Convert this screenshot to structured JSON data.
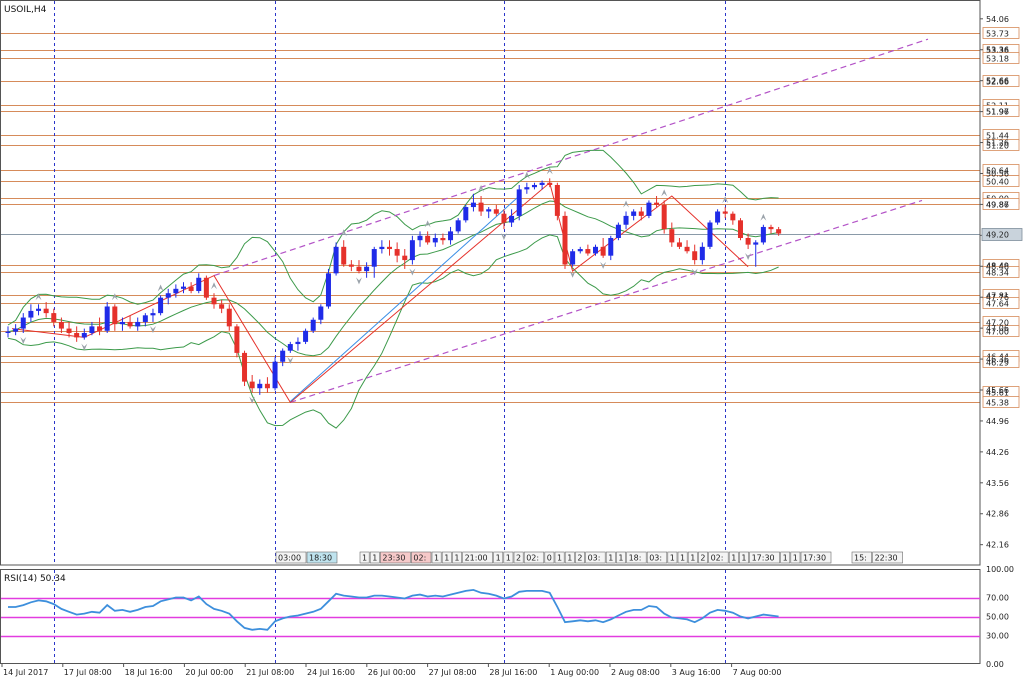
{
  "window": {
    "title": "USOIL,H4"
  },
  "chart_data": [
    {
      "type": "candlestick",
      "symbol": "USOIL",
      "timeframe": "H4",
      "ylim": [
        41.7,
        54.35
      ],
      "y_ticks": [
        "54.06",
        "53.36",
        "52.66",
        "51.96",
        "51.26",
        "50.56",
        "49.86",
        "49.16",
        "48.46",
        "47.76",
        "47.06",
        "46.36",
        "45.66",
        "44.96",
        "44.26",
        "43.56",
        "42.86",
        "42.16"
      ],
      "x_ticks": [
        "14 Jul 2017",
        "17 Jul 08:00",
        "18 Jul 16:00",
        "20 Jul 00:00",
        "21 Jul 08:00",
        "24 Jul 16:00",
        "26 Jul 00:00",
        "27 Jul 08:00",
        "28 Jul 16:00",
        "1 Aug 00:00",
        "2 Aug 08:00",
        "3 Aug 16:00",
        "7 Aug 00:00"
      ],
      "current_price": "49.20",
      "level_lines": [
        "53.73",
        "53.36",
        "53.18",
        "52.66",
        "52.11",
        "51.97",
        "51.44",
        "51.20",
        "50.64",
        "50.40",
        "50.00",
        "49.87",
        "48.49",
        "48.34",
        "47.81",
        "47.64",
        "47.20",
        "47.00",
        "46.44",
        "46.29",
        "45.61",
        "45.38"
      ],
      "colors": {
        "bull": "#1f2be8",
        "bear": "#e5312b",
        "level": "#d68b5a",
        "channel": "#b353c7",
        "band": "#3c9a4a",
        "trend": "#3a8ee6",
        "current": "#8a9aa8",
        "period": "#2a35c9"
      },
      "time_labels": [
        "03:00",
        "18:30",
        "1",
        "1",
        "23:30",
        "02:",
        "1",
        "1",
        "1",
        "21:00",
        "1",
        "1",
        "2",
        "02:",
        "0",
        "1",
        "1",
        "2",
        "03:",
        "1",
        "1",
        "18:",
        "03:",
        "1",
        "1",
        "1",
        "2",
        "02:",
        "1",
        "1",
        "17:30",
        "1",
        "1",
        "17:30",
        "15:",
        "22:30"
      ],
      "ohlc": [
        [
          46.95,
          47.1,
          46.85,
          46.98
        ],
        [
          46.98,
          47.15,
          46.9,
          47.05
        ],
        [
          47.05,
          47.4,
          46.95,
          47.3
        ],
        [
          47.3,
          47.6,
          47.2,
          47.45
        ],
        [
          47.45,
          47.6,
          47.35,
          47.5
        ],
        [
          47.5,
          47.65,
          47.3,
          47.4
        ],
        [
          47.4,
          47.5,
          47.1,
          47.2
        ],
        [
          47.2,
          47.3,
          46.95,
          47.05
        ],
        [
          47.05,
          47.2,
          46.85,
          46.95
        ],
        [
          46.95,
          47.1,
          46.75,
          46.85
        ],
        [
          46.85,
          47.05,
          46.8,
          46.95
        ],
        [
          46.95,
          47.2,
          46.9,
          47.1
        ],
        [
          47.1,
          47.3,
          46.9,
          47.0
        ],
        [
          47.0,
          47.65,
          46.95,
          47.55
        ],
        [
          47.55,
          47.6,
          47.0,
          47.15
        ],
        [
          47.15,
          47.3,
          47.0,
          47.2
        ],
        [
          47.2,
          47.35,
          47.05,
          47.1
        ],
        [
          47.1,
          47.3,
          47.0,
          47.2
        ],
        [
          47.2,
          47.4,
          47.1,
          47.35
        ],
        [
          47.35,
          47.5,
          47.2,
          47.4
        ],
        [
          47.4,
          47.8,
          47.35,
          47.75
        ],
        [
          47.75,
          47.95,
          47.6,
          47.85
        ],
        [
          47.85,
          48.05,
          47.75,
          47.95
        ],
        [
          47.95,
          48.1,
          47.85,
          48.0
        ],
        [
          48.0,
          48.1,
          47.85,
          47.9
        ],
        [
          47.9,
          48.3,
          47.85,
          48.2
        ],
        [
          48.2,
          48.25,
          47.7,
          47.75
        ],
        [
          47.75,
          47.85,
          47.5,
          47.6
        ],
        [
          47.6,
          47.7,
          47.4,
          47.5
        ],
        [
          47.5,
          47.6,
          47.0,
          47.1
        ],
        [
          47.1,
          47.15,
          46.4,
          46.5
        ],
        [
          46.5,
          46.55,
          45.75,
          45.85
        ],
        [
          45.85,
          46.0,
          45.6,
          45.7
        ],
        [
          45.7,
          45.9,
          45.55,
          45.8
        ],
        [
          45.8,
          45.95,
          45.6,
          45.7
        ],
        [
          45.7,
          46.4,
          45.65,
          46.3
        ],
        [
          46.3,
          46.6,
          46.2,
          46.55
        ],
        [
          46.55,
          46.75,
          46.5,
          46.7
        ],
        [
          46.7,
          46.85,
          46.55,
          46.75
        ],
        [
          46.75,
          47.05,
          46.7,
          47.0
        ],
        [
          47.0,
          47.3,
          46.95,
          47.25
        ],
        [
          47.25,
          47.6,
          47.15,
          47.55
        ],
        [
          47.55,
          48.4,
          47.5,
          48.3
        ],
        [
          48.3,
          49.0,
          48.25,
          48.9
        ],
        [
          48.9,
          49.05,
          48.45,
          48.5
        ],
        [
          48.5,
          48.6,
          48.35,
          48.45
        ],
        [
          48.45,
          48.6,
          48.3,
          48.35
        ],
        [
          48.35,
          48.55,
          48.2,
          48.45
        ],
        [
          48.45,
          48.9,
          48.2,
          48.85
        ],
        [
          48.85,
          49.05,
          48.75,
          48.9
        ],
        [
          48.9,
          49.05,
          48.7,
          48.85
        ],
        [
          48.85,
          49.0,
          48.55,
          48.7
        ],
        [
          48.7,
          48.85,
          48.4,
          48.6
        ],
        [
          48.6,
          49.15,
          48.5,
          49.05
        ],
        [
          49.05,
          49.25,
          48.9,
          49.15
        ],
        [
          49.15,
          49.25,
          48.95,
          49.0
        ],
        [
          49.0,
          49.2,
          48.9,
          49.1
        ],
        [
          49.1,
          49.2,
          48.95,
          49.05
        ],
        [
          49.05,
          49.35,
          48.95,
          49.25
        ],
        [
          49.25,
          49.55,
          49.2,
          49.5
        ],
        [
          49.5,
          49.85,
          49.45,
          49.8
        ],
        [
          49.8,
          50.1,
          49.7,
          49.9
        ],
        [
          49.9,
          50.05,
          49.6,
          49.7
        ],
        [
          49.7,
          49.8,
          49.55,
          49.75
        ],
        [
          49.75,
          49.85,
          49.6,
          49.65
        ],
        [
          49.65,
          49.75,
          49.3,
          49.45
        ],
        [
          49.45,
          49.75,
          49.35,
          49.6
        ],
        [
          49.6,
          50.3,
          49.5,
          50.2
        ],
        [
          50.2,
          50.35,
          50.1,
          50.25
        ],
        [
          50.25,
          50.35,
          50.2,
          50.3
        ],
        [
          50.3,
          50.4,
          50.2,
          50.35
        ],
        [
          50.35,
          50.45,
          50.25,
          50.3
        ],
        [
          50.3,
          50.35,
          49.5,
          49.6
        ],
        [
          49.6,
          49.7,
          48.4,
          48.5
        ],
        [
          48.5,
          48.85,
          48.45,
          48.8
        ],
        [
          48.8,
          48.9,
          48.75,
          48.85
        ],
        [
          48.85,
          48.95,
          48.7,
          48.75
        ],
        [
          48.75,
          48.95,
          48.7,
          48.9
        ],
        [
          48.9,
          49.1,
          48.65,
          48.7
        ],
        [
          48.7,
          49.15,
          48.6,
          49.1
        ],
        [
          49.1,
          49.45,
          49.05,
          49.4
        ],
        [
          49.4,
          49.7,
          49.3,
          49.6
        ],
        [
          49.6,
          49.75,
          49.5,
          49.7
        ],
        [
          49.7,
          49.8,
          49.5,
          49.6
        ],
        [
          49.6,
          49.95,
          49.55,
          49.9
        ],
        [
          49.9,
          50.05,
          49.8,
          49.85
        ],
        [
          49.85,
          49.95,
          49.2,
          49.3
        ],
        [
          49.3,
          49.45,
          48.9,
          49.0
        ],
        [
          49.0,
          49.1,
          48.85,
          48.9
        ],
        [
          48.9,
          49.05,
          48.75,
          48.8
        ],
        [
          48.8,
          48.95,
          48.5,
          48.6
        ],
        [
          48.6,
          49.0,
          48.5,
          48.9
        ],
        [
          48.9,
          49.5,
          48.85,
          49.45
        ],
        [
          49.45,
          49.75,
          49.4,
          49.7
        ],
        [
          49.7,
          49.8,
          49.55,
          49.65
        ],
        [
          49.65,
          49.7,
          49.4,
          49.5
        ],
        [
          49.5,
          49.55,
          49.05,
          49.1
        ],
        [
          49.1,
          49.2,
          48.85,
          48.95
        ],
        [
          48.95,
          49.05,
          48.45,
          49.0
        ],
        [
          49.0,
          49.4,
          48.95,
          49.35
        ],
        [
          49.35,
          49.4,
          49.2,
          49.3
        ],
        [
          49.3,
          49.35,
          49.15,
          49.2
        ]
      ],
      "rsi": {
        "label": "RSI(14) 50.34",
        "ylim": [
          0,
          100
        ],
        "ticks": [
          "100.00",
          "70.00",
          "50.00",
          "30.00",
          "0.00"
        ],
        "levels": [
          70,
          50,
          30
        ],
        "values": [
          60,
          60,
          62,
          65,
          67,
          66,
          63,
          58,
          55,
          52,
          53,
          55,
          54,
          62,
          56,
          57,
          55,
          57,
          60,
          61,
          66,
          68,
          70,
          70,
          67,
          71,
          63,
          58,
          56,
          53,
          45,
          38,
          36,
          37,
          36,
          45,
          48,
          50,
          51,
          53,
          55,
          58,
          66,
          74,
          72,
          71,
          70,
          70,
          72,
          72,
          71,
          70,
          69,
          72,
          73,
          71,
          72,
          71,
          73,
          75,
          77,
          78,
          75,
          74,
          72,
          69,
          71,
          76,
          77,
          77,
          77,
          75,
          60,
          44,
          45,
          46,
          45,
          46,
          44,
          47,
          51,
          55,
          57,
          57,
          61,
          60,
          53,
          49,
          48,
          47,
          44,
          48,
          54,
          57,
          56,
          54,
          50,
          48,
          50,
          52,
          51,
          50
        ]
      }
    }
  ]
}
